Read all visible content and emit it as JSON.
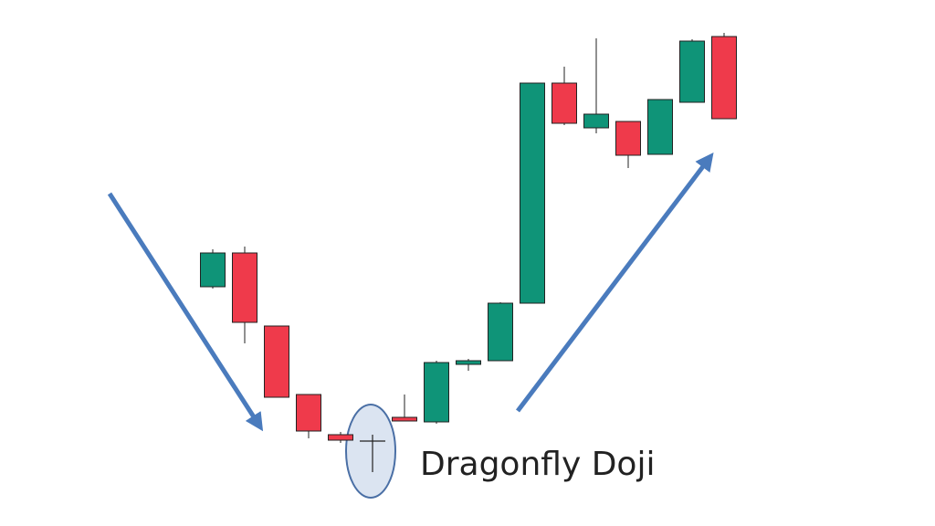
{
  "annotation": {
    "label": "Dragonfly Doji"
  }
}
